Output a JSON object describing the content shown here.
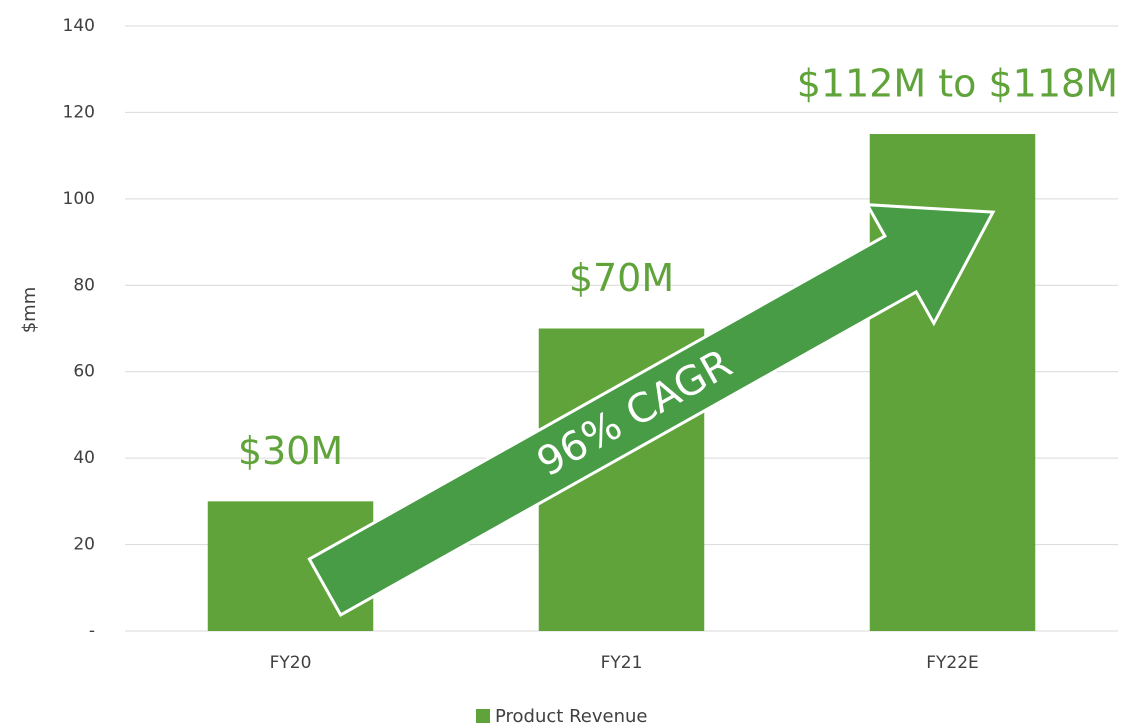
{
  "chart_data": {
    "type": "bar",
    "y_label": "$mm",
    "categories": [
      "FY20",
      "FY21",
      "FY22E"
    ],
    "values": [
      30,
      70,
      115
    ],
    "value_labels": [
      "$30M",
      "$70M",
      "$112M to $118M"
    ],
    "color": "#5fa33a",
    "series_name": "Product Revenue",
    "annotation": "96% CAGR",
    "ylim": [
      0,
      140
    ],
    "yticks": [
      {
        "value": 0,
        "label": "-"
      },
      20,
      40,
      60,
      80,
      100,
      120,
      140
    ],
    "grid": true
  }
}
